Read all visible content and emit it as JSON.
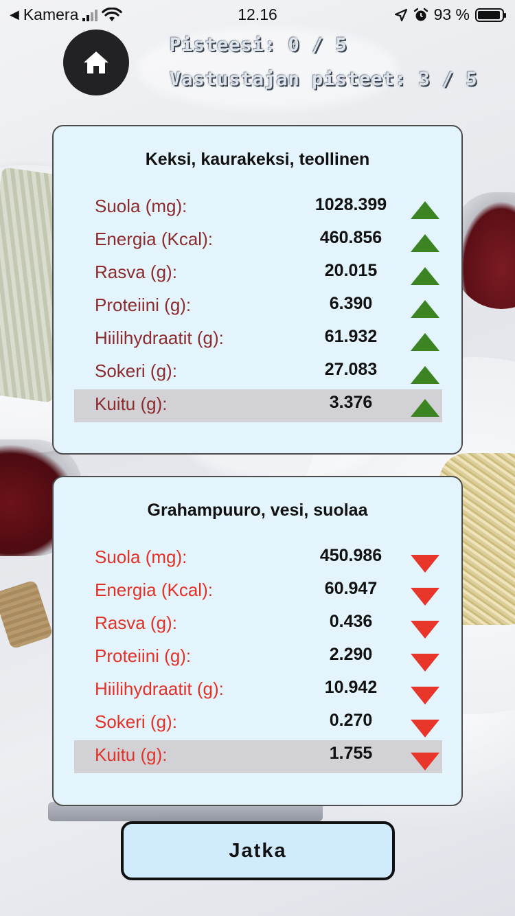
{
  "status_bar": {
    "back_app": "Kamera",
    "time": "12.16",
    "battery": "93 %",
    "battery_level": 0.93
  },
  "header": {
    "player_score": "Pisteesi: 0 / 5",
    "opponent_score": "Vastustajan pisteet: 3 / 5"
  },
  "cards": [
    {
      "title": "Keksi, kaurakeksi, teollinen",
      "arrow": "up",
      "arrow_color": "#3c8421",
      "label_color": "#8b2b2d",
      "rows": [
        {
          "label": "Suola (mg):",
          "value": "1028.399"
        },
        {
          "label": "Energia (Kcal):",
          "value": "460.856"
        },
        {
          "label": "Rasva (g):",
          "value": "20.015"
        },
        {
          "label": "Proteiini (g):",
          "value": "6.390"
        },
        {
          "label": "Hiilihydraatit (g):",
          "value": "61.932"
        },
        {
          "label": "Sokeri (g):",
          "value": "27.083"
        },
        {
          "label": "Kuitu (g):",
          "value": "3.376"
        }
      ]
    },
    {
      "title": "Grahampuuro, vesi, suolaa",
      "arrow": "down",
      "arrow_color": "#e8362a",
      "label_color": "#e23127",
      "rows": [
        {
          "label": "Suola (mg):",
          "value": "450.986"
        },
        {
          "label": "Energia (Kcal):",
          "value": "60.947"
        },
        {
          "label": "Rasva (g):",
          "value": "0.436"
        },
        {
          "label": "Proteiini (g):",
          "value": "2.290"
        },
        {
          "label": "Hiilihydraatit (g):",
          "value": "10.942"
        },
        {
          "label": "Sokeri (g):",
          "value": "0.270"
        },
        {
          "label": "Kuitu (g):",
          "value": "1.755"
        }
      ]
    }
  ],
  "highlighted_row": "Kuitu (g):",
  "continue_button": "Jatka"
}
